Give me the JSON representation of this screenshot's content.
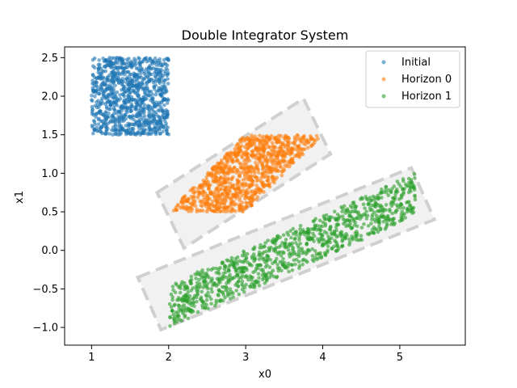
{
  "chart_data": {
    "type": "scatter",
    "title": "Double Integrator System",
    "xlabel": "x0",
    "ylabel": "x1",
    "xlim": [
      0.65,
      5.85
    ],
    "ylim": [
      -1.23,
      2.64
    ],
    "xticks": [
      1,
      2,
      3,
      4,
      5
    ],
    "yticks": [
      -1.0,
      -0.5,
      0.0,
      0.5,
      1.0,
      1.5,
      2.0,
      2.5
    ],
    "xtick_labels": [
      "1",
      "2",
      "3",
      "4",
      "5"
    ],
    "ytick_labels": [
      "−1.0",
      "−0.5",
      "0.0",
      "0.5",
      "1.0",
      "1.5",
      "2.0",
      "2.5"
    ],
    "grid": false,
    "legend_position": "top-right",
    "series": [
      {
        "name": "Initial",
        "color": "#1f77b4",
        "distribution": "uniform-box",
        "x_range": [
          1.0,
          2.0
        ],
        "y_range": [
          1.5,
          2.5
        ],
        "count": 1000
      },
      {
        "name": "Horizon 0",
        "color": "#ff7f0e",
        "distribution": "parallelogram",
        "vertices": [
          [
            2.0,
            0.5
          ],
          [
            3.0,
            0.5
          ],
          [
            4.0,
            1.5
          ],
          [
            3.0,
            1.5
          ]
        ],
        "count": 1000
      },
      {
        "name": "Horizon 1",
        "color": "#2ca02c",
        "distribution": "parallelogram",
        "vertices": [
          [
            2.0,
            -0.7
          ],
          [
            4.0,
            0.0
          ],
          [
            5.2,
            0.95
          ],
          [
            3.2,
            0.25
          ],
          [
            2.0,
            -1.0
          ]
        ],
        "count": 1000
      }
    ],
    "bounding_boxes": [
      {
        "name": "Horizon 0 bound",
        "corners": [
          [
            1.85,
            0.75
          ],
          [
            3.75,
            1.97
          ],
          [
            4.1,
            1.25
          ],
          [
            2.2,
            0.03
          ]
        ]
      },
      {
        "name": "Horizon 1 bound",
        "corners": [
          [
            1.6,
            -0.35
          ],
          [
            5.15,
            1.07
          ],
          [
            5.45,
            0.4
          ],
          [
            1.9,
            -1.03
          ]
        ]
      }
    ],
    "bound_style": {
      "fill": "#e8e8e8",
      "stroke": "#d0d0d0"
    }
  }
}
